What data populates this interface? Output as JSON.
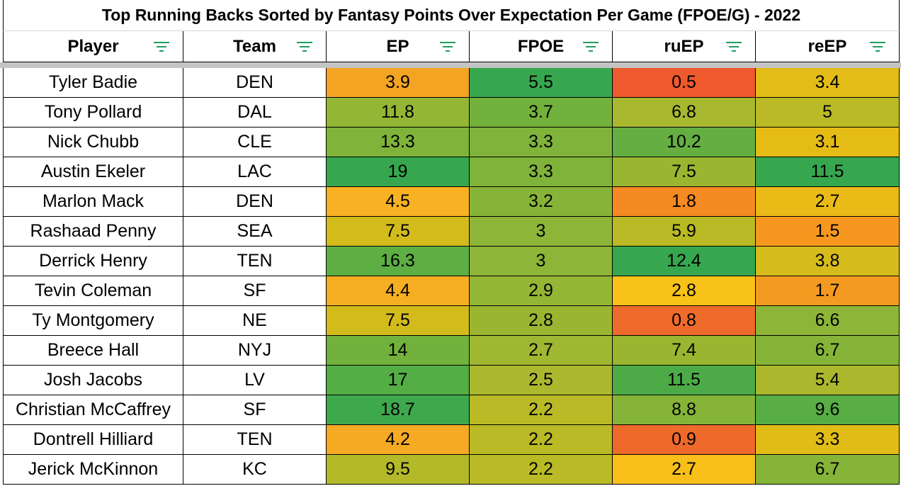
{
  "title": "Top Running Backs Sorted by Fantasy Points Over Expectation Per Game (FPOE/G) - 2022",
  "columns": [
    "Player",
    "Team",
    "EP",
    "FPOE",
    "ruEP",
    "reEP"
  ],
  "filter_icon": "filter-lines-icon",
  "colors": {
    "filter": "#1e9e5a",
    "green": "#35a853",
    "green_mid": "#6fb13e",
    "olive": "#a7b72f",
    "yellow": "#e1bc17",
    "amber": "#f6a71f",
    "orange": "#f5841f",
    "red_orange": "#ee5a2d"
  },
  "rows": [
    {
      "player": "Tyler Badie",
      "team": "DEN",
      "ep": "3.9",
      "fpoe": "5.5",
      "ruep": "0.5",
      "reep": "3.4",
      "bg": [
        "#f4a423",
        "#37a74f",
        "#ee5a2d",
        "#e3bc17"
      ]
    },
    {
      "player": "Tony Pollard",
      "team": "DAL",
      "ep": "11.8",
      "fpoe": "3.7",
      "ruep": "6.8",
      "reep": "5",
      "bg": [
        "#94b635",
        "#72b13b",
        "#a8b82f",
        "#b9ba25"
      ]
    },
    {
      "player": "Nick Chubb",
      "team": "CLE",
      "ep": "13.3",
      "fpoe": "3.3",
      "ruep": "10.2",
      "reep": "3.1",
      "bg": [
        "#7fb33a",
        "#7fb33a",
        "#64ae42",
        "#e5bc15"
      ]
    },
    {
      "player": "Austin Ekeler",
      "team": "LAC",
      "ep": "19",
      "fpoe": "3.3",
      "ruep": "7.5",
      "reep": "11.5",
      "bg": [
        "#37a74f",
        "#7fb33a",
        "#9ab630",
        "#37a74f"
      ]
    },
    {
      "player": "Marlon Mack",
      "team": "DEN",
      "ep": "4.5",
      "fpoe": "3.2",
      "ruep": "1.8",
      "reep": "2.7",
      "bg": [
        "#f7b122",
        "#86b438",
        "#f58a22",
        "#eaba16"
      ]
    },
    {
      "player": "Rashaad Penny",
      "team": "SEA",
      "ep": "7.5",
      "fpoe": "3",
      "ruep": "5.9",
      "reep": "1.5",
      "bg": [
        "#d4bb1c",
        "#8db537",
        "#b9ba25",
        "#f6981f"
      ]
    },
    {
      "player": "Derrick Henry",
      "team": "TEN",
      "ep": "16.3",
      "fpoe": "3",
      "ruep": "12.4",
      "reep": "3.8",
      "bg": [
        "#5dae43",
        "#8db537",
        "#37a74f",
        "#d6bb1c"
      ]
    },
    {
      "player": "Tevin Coleman",
      "team": "SF",
      "ep": "4.4",
      "fpoe": "2.9",
      "ruep": "2.8",
      "reep": "1.7",
      "bg": [
        "#f6ae22",
        "#94b635",
        "#f8c218",
        "#f59a20"
      ]
    },
    {
      "player": "Ty Montgomery",
      "team": "NE",
      "ep": "7.5",
      "fpoe": "2.8",
      "ruep": "0.8",
      "reep": "6.6",
      "bg": [
        "#d4bb1c",
        "#9ab630",
        "#ef6b2b",
        "#8db537"
      ]
    },
    {
      "player": "Breece Hall",
      "team": "NYJ",
      "ep": "14",
      "fpoe": "2.7",
      "ruep": "7.4",
      "reep": "6.7",
      "bg": [
        "#72b13b",
        "#a0b732",
        "#9ab630",
        "#86b438"
      ]
    },
    {
      "player": "Josh Jacobs",
      "team": "LV",
      "ep": "17",
      "fpoe": "2.5",
      "ruep": "11.5",
      "reep": "5.4",
      "bg": [
        "#55ad45",
        "#abb82e",
        "#4dab47",
        "#abb82e"
      ]
    },
    {
      "player": "Christian McCaffrey",
      "team": "SF",
      "ep": "18.7",
      "fpoe": "2.2",
      "ruep": "8.8",
      "reep": "9.6",
      "bg": [
        "#3ea84c",
        "#b9ba25",
        "#86b438",
        "#58ad44"
      ]
    },
    {
      "player": "Dontrell Hilliard",
      "team": "TEN",
      "ep": "4.2",
      "fpoe": "2.2",
      "ruep": "0.9",
      "reep": "3.3",
      "bg": [
        "#f6a923",
        "#b9ba25",
        "#ee6a2b",
        "#e1bc17"
      ]
    },
    {
      "player": "Jerick McKinnon",
      "team": "KC",
      "ep": "9.5",
      "fpoe": "2.2",
      "ruep": "2.7",
      "reep": "6.7",
      "bg": [
        "#b3b929",
        "#b9ba25",
        "#f8bf1a",
        "#86b438"
      ]
    }
  ]
}
